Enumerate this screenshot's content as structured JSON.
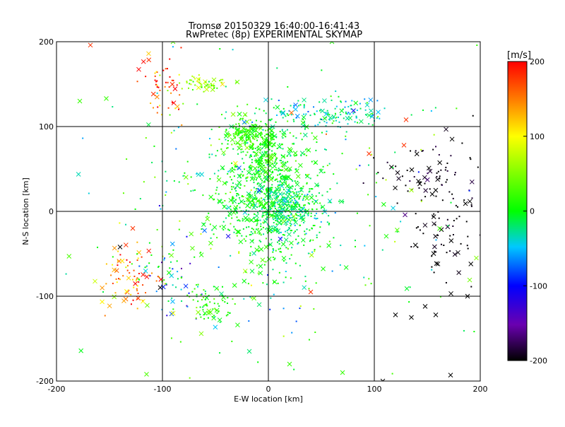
{
  "chart_data": {
    "type": "scatter",
    "title": "Tromsø 20150329 16:40:00-16:41:43",
    "subtitle": "RwPretec (8p) EXPERIMENTAL SKYMAP",
    "xlabel": "E-W location [km]",
    "ylabel": "N-S location [km]",
    "xlim": [
      -200,
      200
    ],
    "ylim": [
      -200,
      200
    ],
    "xticks": [
      "-200",
      "-100",
      "0",
      "100",
      "200"
    ],
    "yticks": [
      "-200",
      "-100",
      "0",
      "100",
      "200"
    ],
    "grid": true,
    "colorbar": {
      "label": "[m/s]",
      "range": [
        -200,
        200
      ],
      "ticks": [
        "200",
        "100",
        "0",
        "-100",
        "-200"
      ],
      "colors": [
        "#000000",
        "#6a00b0",
        "#0000ff",
        "#00c8ff",
        "#00ff00",
        "#ffff00",
        "#ff8000",
        "#ff0000"
      ]
    },
    "clusters": [
      {
        "cx": 0,
        "cy": 20,
        "sx": 25,
        "sy": 40,
        "n": 700,
        "v": 0,
        "vs": 15
      },
      {
        "cx": -20,
        "cy": 90,
        "sx": 12,
        "sy": 8,
        "n": 150,
        "v": 20,
        "vs": 15
      },
      {
        "cx": -5,
        "cy": 65,
        "sx": 8,
        "sy": 15,
        "n": 120,
        "v": 10,
        "vs": 15
      },
      {
        "cx": 15,
        "cy": 0,
        "sx": 20,
        "sy": 15,
        "n": 250,
        "v": -20,
        "vs": 20
      },
      {
        "cx": 50,
        "cy": 115,
        "sx": 35,
        "sy": 8,
        "n": 150,
        "v": -30,
        "vs": 25
      },
      {
        "cx": -60,
        "cy": 150,
        "sx": 12,
        "sy": 5,
        "n": 60,
        "v": 50,
        "vs": 25
      },
      {
        "cx": -100,
        "cy": 145,
        "sx": 12,
        "sy": 20,
        "n": 50,
        "v": 180,
        "vs": 40
      },
      {
        "cx": -130,
        "cy": -80,
        "sx": 15,
        "sy": 20,
        "n": 80,
        "v": 150,
        "vs": 50
      },
      {
        "cx": -90,
        "cy": -70,
        "sx": 15,
        "sy": 30,
        "n": 60,
        "v": -40,
        "vs": 60
      },
      {
        "cx": -55,
        "cy": -110,
        "sx": 12,
        "sy": 12,
        "n": 70,
        "v": 10,
        "vs": 20
      },
      {
        "cx": 170,
        "cy": -10,
        "sx": 20,
        "sy": 40,
        "n": 90,
        "v": -200,
        "vs": 5
      },
      {
        "cx": 150,
        "cy": 40,
        "sx": 25,
        "sy": 25,
        "n": 60,
        "v": -195,
        "vs": 10
      },
      {
        "cx": 0,
        "cy": 0,
        "sx": 90,
        "sy": 90,
        "n": 300,
        "v": 0,
        "vs": 50
      }
    ],
    "points": [
      {
        "x": -168,
        "y": 196,
        "v": 180,
        "m": "x"
      },
      {
        "x": -113,
        "y": 186,
        "v": 120,
        "m": "x"
      },
      {
        "x": -178,
        "y": 130,
        "v": 20,
        "m": "x"
      },
      {
        "x": -153,
        "y": 133,
        "v": 20,
        "m": "x"
      },
      {
        "x": 128,
        "y": 78,
        "v": 180,
        "m": "x"
      },
      {
        "x": 130,
        "y": 108,
        "v": 180,
        "m": "x"
      },
      {
        "x": 95,
        "y": 68,
        "v": 180,
        "m": "x"
      },
      {
        "x": 40,
        "y": -95,
        "v": 180,
        "m": "x"
      },
      {
        "x": -128,
        "y": -20,
        "v": 180,
        "m": "x"
      },
      {
        "x": -140,
        "y": -42,
        "v": -200,
        "m": "x"
      },
      {
        "x": 108,
        "y": -200,
        "v": -200,
        "m": "x"
      },
      {
        "x": 120,
        "y": -122,
        "v": -200,
        "m": "x"
      },
      {
        "x": 135,
        "y": -125,
        "v": -200,
        "m": "x"
      },
      {
        "x": 148,
        "y": -112,
        "v": -200,
        "m": "x"
      },
      {
        "x": 158,
        "y": -122,
        "v": -200,
        "m": "x"
      },
      {
        "x": 172,
        "y": -193,
        "v": -200,
        "m": "x"
      },
      {
        "x": 188,
        "y": -100,
        "v": -200,
        "m": "x"
      },
      {
        "x": 135,
        "y": 25,
        "v": 60,
        "m": "x"
      },
      {
        "x": -90,
        "y": 200,
        "v": 30,
        "m": "x"
      },
      {
        "x": 60,
        "y": 200,
        "v": 10,
        "m": "x"
      },
      {
        "x": 70,
        "y": -190,
        "v": 20,
        "m": "x"
      },
      {
        "x": -115,
        "y": -192,
        "v": 30,
        "m": "x"
      },
      {
        "x": 20,
        "y": -180,
        "v": 20,
        "m": "x"
      },
      {
        "x": -18,
        "y": -165,
        "v": -20,
        "m": "x"
      }
    ]
  }
}
